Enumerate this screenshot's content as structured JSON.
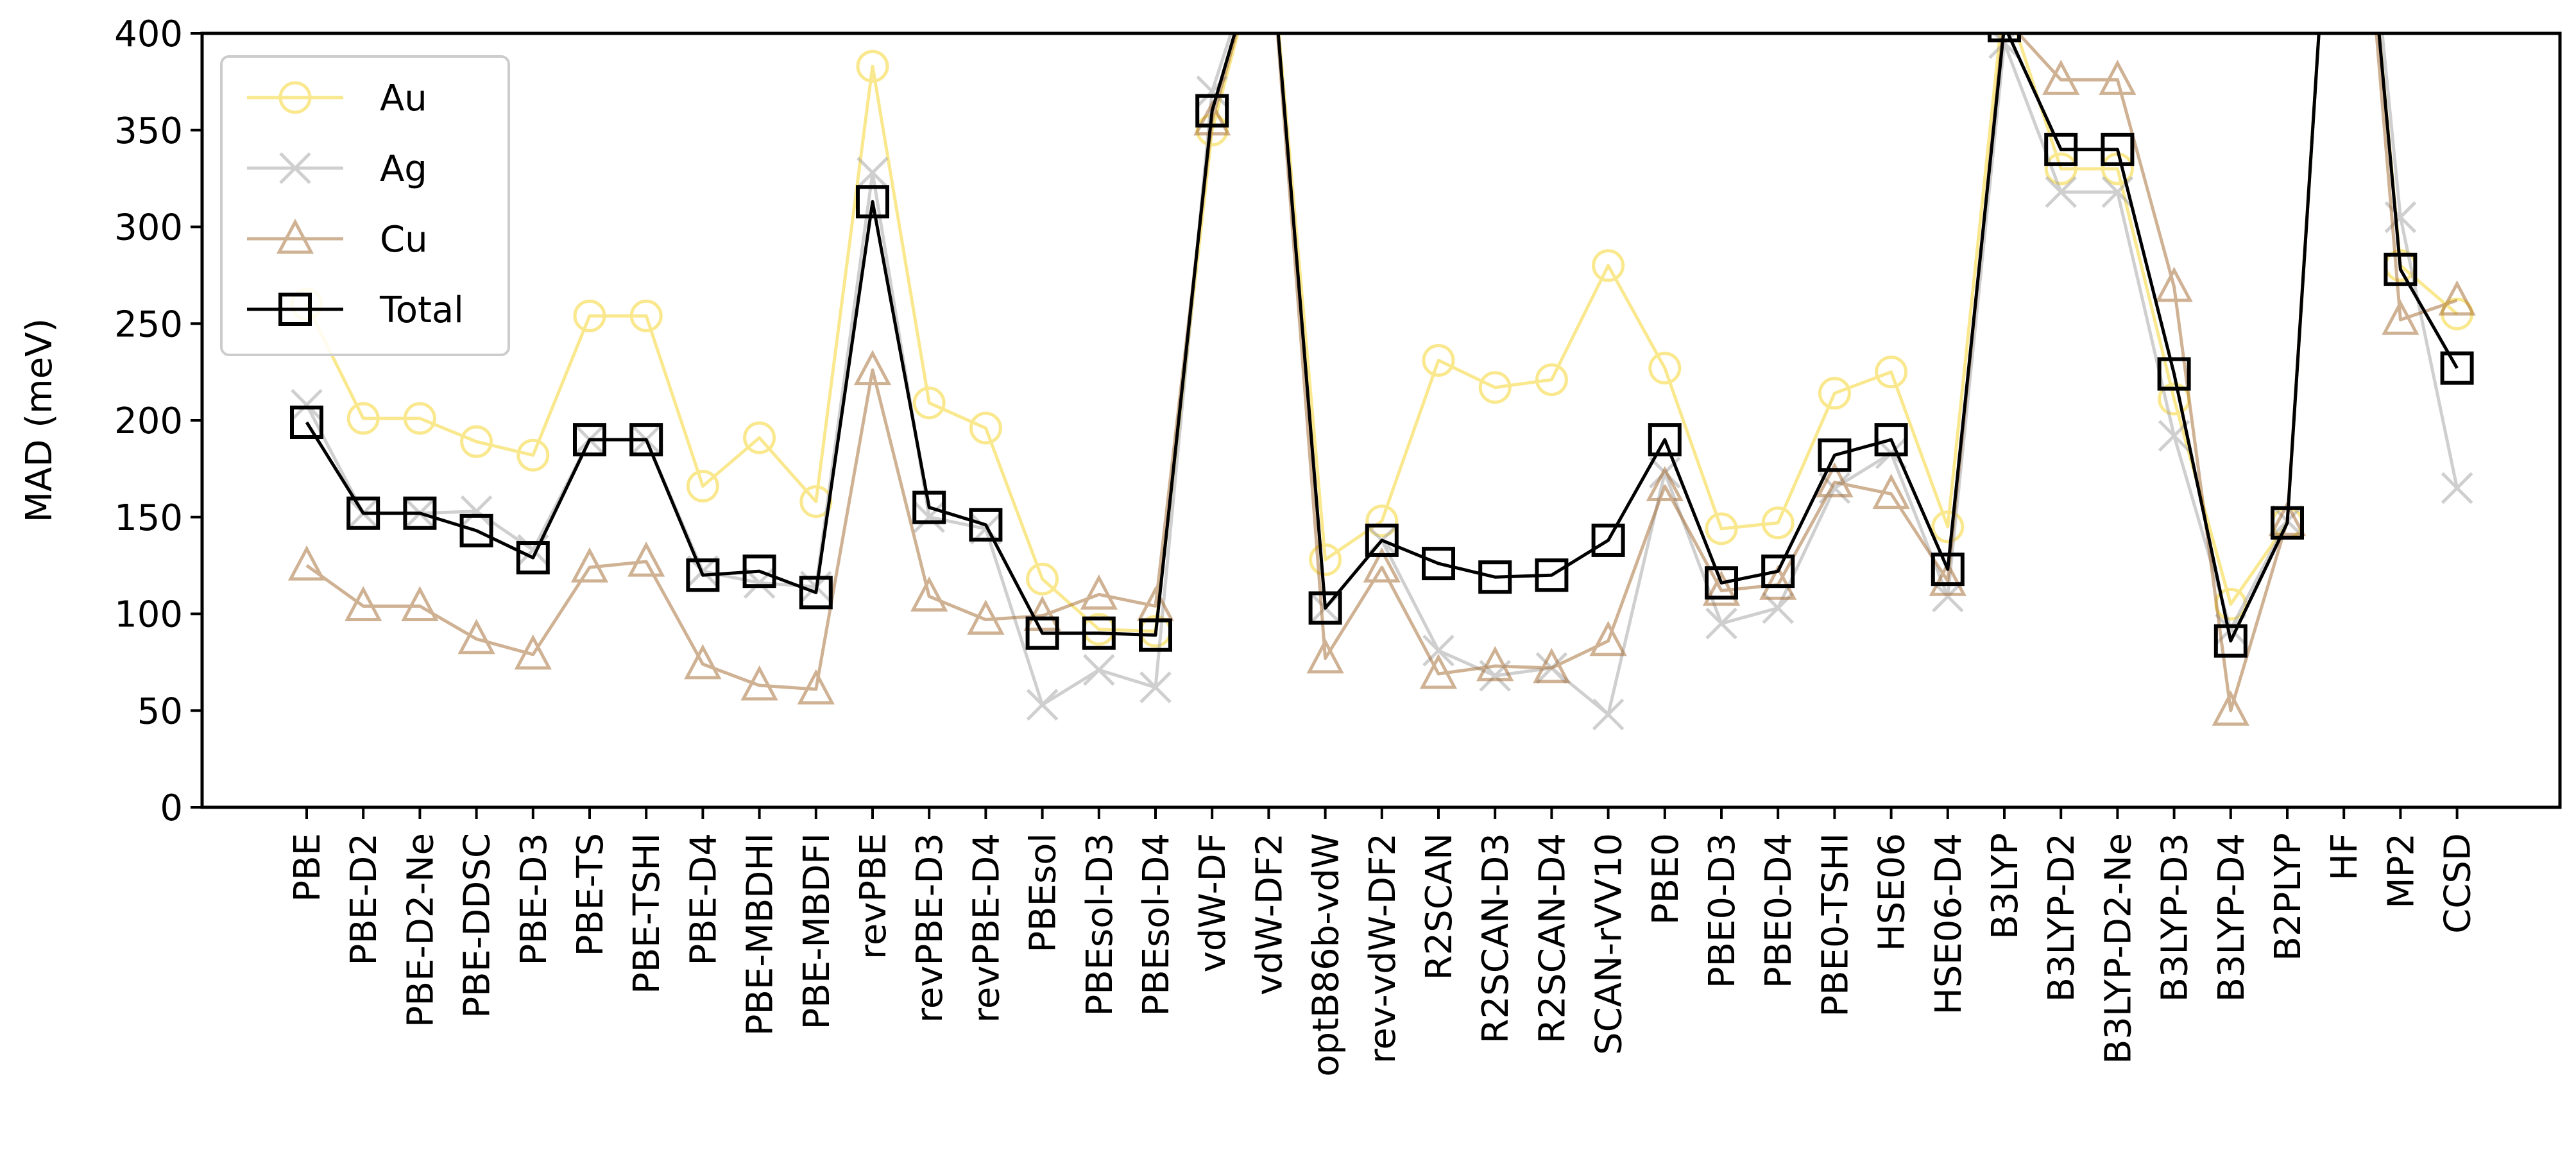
{
  "chart_data": {
    "type": "line",
    "ylabel": "MAD (meV)",
    "ylim": [
      0,
      400
    ],
    "yticks": [
      0,
      50,
      100,
      150,
      200,
      250,
      300,
      350,
      400
    ],
    "grid": false,
    "legend_position": "top-left",
    "categories": [
      "PBE",
      "PBE-D2",
      "PBE-D2-Ne",
      "PBE-DDSC",
      "PBE-D3",
      "PBE-TS",
      "PBE-TSHI",
      "PBE-D4",
      "PBE-MBDHI",
      "PBE-MBDFI",
      "revPBE",
      "revPBE-D3",
      "revPBE-D4",
      "PBEsol",
      "PBEsol-D3",
      "PBEsol-D4",
      "vdW-DF",
      "vdW-DF2",
      "optB86b-vdW",
      "rev-vdW-DF2",
      "R2SCAN",
      "R2SCAN-D3",
      "R2SCAN-D4",
      "SCAN-rVV10",
      "PBE0",
      "PBE0-D3",
      "PBE0-D4",
      "PBE0-TSHI",
      "HSE06",
      "HSE06-D4",
      "B3LYP",
      "B3LYP-D2",
      "B3LYP-D2-Ne",
      "B3LYP-D3",
      "B3LYP-D4",
      "B2PLYP",
      "HF",
      "MP2",
      "CCSD"
    ],
    "series": [
      {
        "name": "Au",
        "color": "#f5d633",
        "marker": "circle",
        "alpha": 0.55,
        "values": [
          260,
          201,
          201,
          189,
          182,
          254,
          254,
          166,
          191,
          158,
          383,
          209,
          196,
          118,
          92,
          91,
          350,
          460,
          128,
          148,
          231,
          217,
          221,
          280,
          227,
          144,
          147,
          214,
          225,
          145,
          420,
          330,
          330,
          211,
          105,
          147,
          600,
          280,
          255
        ]
      },
      {
        "name": "Ag",
        "color": "#a0a0a0",
        "marker": "x",
        "alpha": 0.5,
        "values": [
          208,
          152,
          152,
          153,
          133,
          190,
          190,
          122,
          116,
          114,
          328,
          150,
          144,
          53,
          71,
          62,
          370,
          460,
          103,
          138,
          81,
          68,
          72,
          48,
          173,
          95,
          103,
          165,
          183,
          109,
          395,
          318,
          318,
          192,
          92,
          148,
          600,
          305,
          165
        ]
      },
      {
        "name": "Cu",
        "color": "#a0662a",
        "marker": "triangle",
        "alpha": 0.5,
        "values": [
          125,
          104,
          104,
          87,
          79,
          124,
          127,
          74,
          63,
          61,
          226,
          109,
          97,
          99,
          110,
          104,
          355,
          460,
          77,
          124,
          69,
          73,
          72,
          86,
          166,
          112,
          115,
          168,
          162,
          117,
          408,
          376,
          376,
          269,
          50,
          148,
          600,
          252,
          262
        ]
      },
      {
        "name": "Total",
        "color": "#000000",
        "marker": "square",
        "alpha": 1.0,
        "values": [
          199,
          152,
          152,
          143,
          129,
          190,
          190,
          120,
          122,
          111,
          313,
          155,
          146,
          90,
          90,
          89,
          360,
          460,
          103,
          138,
          126,
          119,
          120,
          138,
          190,
          116,
          122,
          182,
          190,
          123,
          404,
          340,
          340,
          224,
          86,
          147,
          600,
          278,
          227
        ]
      }
    ]
  }
}
